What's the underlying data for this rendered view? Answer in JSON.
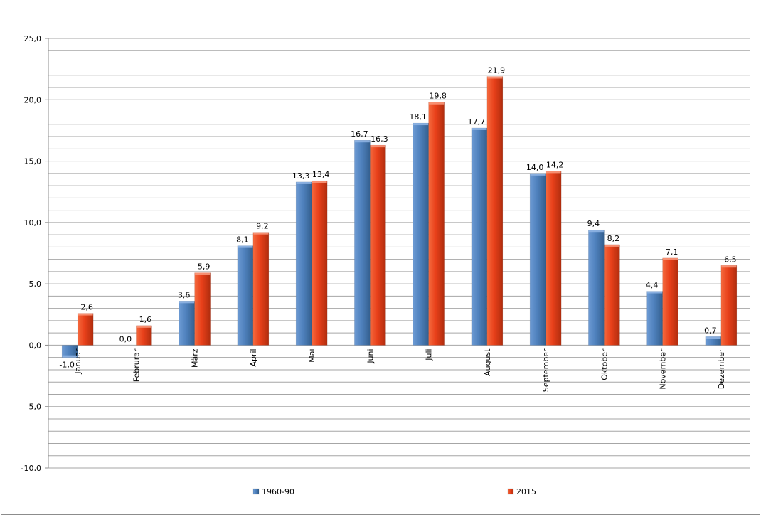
{
  "chart_data": {
    "type": "bar",
    "title": "",
    "xlabel": "",
    "ylabel": "",
    "categories": [
      "Januar",
      "Februrar",
      "März",
      "April",
      "Mai",
      "Juni",
      "Juli",
      "August",
      "September",
      "Oktober",
      "November",
      "Dezember"
    ],
    "series": [
      {
        "name": "1960-90",
        "color": "#4f81bd",
        "values": [
          -1.0,
          0.0,
          3.6,
          8.1,
          13.3,
          16.7,
          18.1,
          17.7,
          14.0,
          9.4,
          4.4,
          0.7
        ],
        "labels": [
          "-1,0",
          "0,0",
          "3,6",
          "8,1",
          "13,3",
          "16,7",
          "18,1",
          "17,7",
          "14,0",
          "9,4",
          "4,4",
          "0,7"
        ]
      },
      {
        "name": "2015",
        "color": "#e8401a",
        "values": [
          2.6,
          1.6,
          5.9,
          9.2,
          13.4,
          16.3,
          19.8,
          21.9,
          14.2,
          8.2,
          7.1,
          6.5
        ],
        "labels": [
          "2,6",
          "1,6",
          "5,9",
          "9,2",
          "13,4",
          "16,3",
          "19,8",
          "21,9",
          "14,2",
          "8,2",
          "7,1",
          "6,5"
        ]
      }
    ],
    "ylim": [
      -10,
      25
    ],
    "yticks": [
      -10,
      -5,
      0,
      5,
      10,
      15,
      20,
      25
    ],
    "ytick_labels": [
      "-10,0",
      "-5,0",
      "0,0",
      "5,0",
      "10,0",
      "15,0",
      "20,0",
      "25,0"
    ],
    "minor_grid_step": 1,
    "grid": true,
    "legend_position": "bottom"
  }
}
